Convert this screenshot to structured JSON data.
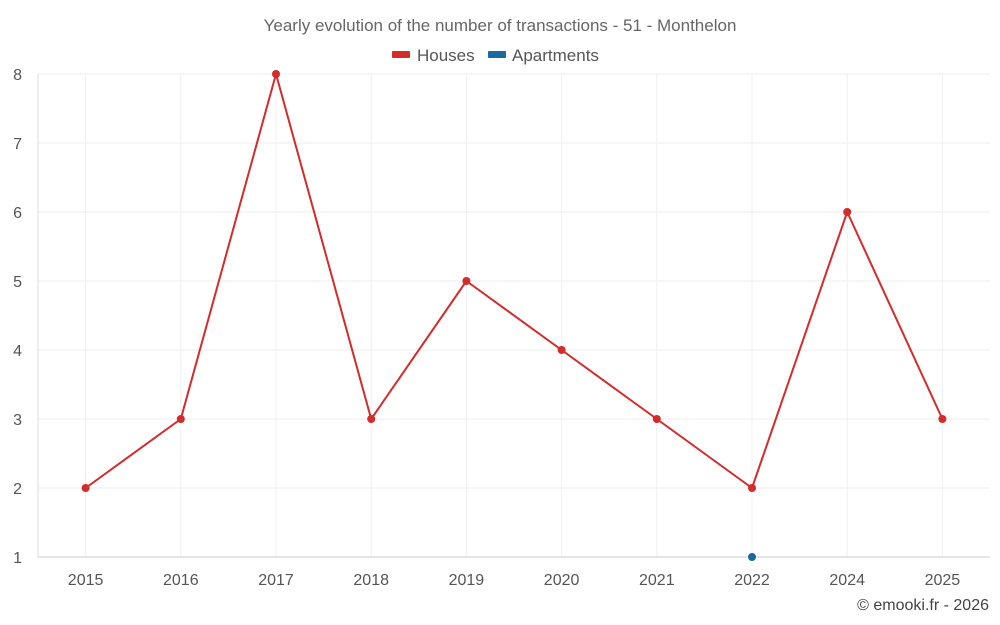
{
  "chart_data": {
    "type": "line",
    "title": "Yearly evolution of the number of transactions - 51 - Monthelon",
    "categories": [
      "2015",
      "2016",
      "2017",
      "2018",
      "2019",
      "2020",
      "2021",
      "2022",
      "2024",
      "2025"
    ],
    "series": [
      {
        "name": "Houses",
        "color": "#d42b2b",
        "values": [
          2,
          3,
          8,
          3,
          5,
          4,
          3,
          2,
          6,
          3
        ]
      },
      {
        "name": "Apartments",
        "color": "#1a6aa0",
        "values": [
          null,
          null,
          null,
          null,
          null,
          null,
          null,
          1,
          null,
          null
        ]
      }
    ],
    "ylim": [
      1,
      8
    ],
    "yticks": [
      "1",
      "2",
      "3",
      "4",
      "5",
      "6",
      "7",
      "8"
    ],
    "xlabel": "",
    "ylabel": "",
    "grid": true,
    "legend": "top-center"
  },
  "credit": "© emooki.fr - 2026"
}
